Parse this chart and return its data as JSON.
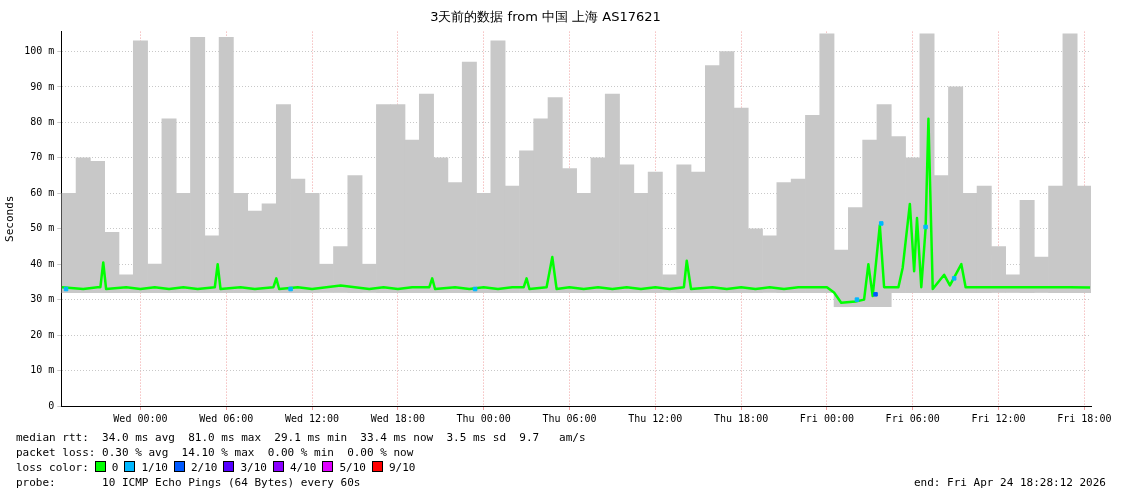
{
  "chart_data": {
    "type": "line",
    "title": "3天前的数据 from 中国 上海 AS17621",
    "ylabel": "Seconds",
    "xlim": [
      "2026-04-21T18:28",
      "2026-04-24T18:28"
    ],
    "xticks": [
      {
        "value": "2026-04-22T00:00",
        "label": "Wed 00:00"
      },
      {
        "value": "2026-04-22T06:00",
        "label": "Wed 06:00"
      },
      {
        "value": "2026-04-22T12:00",
        "label": "Wed 12:00"
      },
      {
        "value": "2026-04-22T18:00",
        "label": "Wed 18:00"
      },
      {
        "value": "2026-04-23T00:00",
        "label": "Thu 00:00"
      },
      {
        "value": "2026-04-23T06:00",
        "label": "Thu 06:00"
      },
      {
        "value": "2026-04-23T12:00",
        "label": "Thu 12:00"
      },
      {
        "value": "2026-04-23T18:00",
        "label": "Thu 18:00"
      },
      {
        "value": "2026-04-24T00:00",
        "label": "Fri 00:00"
      },
      {
        "value": "2026-04-24T06:00",
        "label": "Fri 06:00"
      },
      {
        "value": "2026-04-24T12:00",
        "label": "Fri 12:00"
      },
      {
        "value": "2026-04-24T18:00",
        "label": "Fri 18:00"
      }
    ],
    "ylim": [
      0,
      105.6
    ],
    "yticks": [
      0,
      {
        "value": 10,
        "label": "10 m"
      },
      {
        "value": 20,
        "label": "20 m"
      },
      {
        "value": 30,
        "label": "30 m"
      },
      {
        "value": 40,
        "label": "40 m"
      },
      {
        "value": 50,
        "label": "50 m"
      },
      {
        "value": 60,
        "label": "60 m"
      },
      {
        "value": 70,
        "label": "70 m"
      },
      {
        "value": 80,
        "label": "80 m"
      },
      {
        "value": 90,
        "label": "90 m"
      },
      {
        "value": 100,
        "label": "100 m"
      }
    ],
    "grid": true,
    "legend": "bottom",
    "legend_title": "loss color:",
    "series": [
      {
        "type": "bar",
        "color": "#c8c8c8",
        "x": [
          "2026-04-21T19:00",
          "2026-04-21T20:00",
          "2026-04-21T21:00",
          "2026-04-21T22:00",
          "2026-04-21T23:00",
          "2026-04-22T00:00",
          "2026-04-22T01:00",
          "2026-04-22T02:00",
          "2026-04-22T03:00",
          "2026-04-22T04:00",
          "2026-04-22T05:00",
          "2026-04-22T06:00",
          "2026-04-22T07:00",
          "2026-04-22T08:00",
          "2026-04-22T09:00",
          "2026-04-22T10:00",
          "2026-04-22T11:00",
          "2026-04-22T12:00",
          "2026-04-22T13:00",
          "2026-04-22T14:00",
          "2026-04-22T15:00",
          "2026-04-22T16:00",
          "2026-04-22T17:00",
          "2026-04-22T18:00",
          "2026-04-22T19:00",
          "2026-04-22T20:00",
          "2026-04-22T21:00",
          "2026-04-22T22:00",
          "2026-04-22T23:00",
          "2026-04-23T00:00",
          "2026-04-23T01:00",
          "2026-04-23T02:00",
          "2026-04-23T03:00",
          "2026-04-23T04:00",
          "2026-04-23T05:00",
          "2026-04-23T06:00",
          "2026-04-23T07:00",
          "2026-04-23T08:00",
          "2026-04-23T09:00",
          "2026-04-23T10:00",
          "2026-04-23T11:00",
          "2026-04-23T12:00",
          "2026-04-23T13:00",
          "2026-04-23T14:00",
          "2026-04-23T15:00",
          "2026-04-23T16:00",
          "2026-04-23T17:00",
          "2026-04-23T18:00",
          "2026-04-23T19:00",
          "2026-04-23T20:00",
          "2026-04-23T21:00",
          "2026-04-23T22:00",
          "2026-04-23T23:00",
          "2026-04-24T00:00",
          "2026-04-24T01:00",
          "2026-04-24T02:00",
          "2026-04-24T03:00",
          "2026-04-24T04:00",
          "2026-04-24T05:00",
          "2026-04-24T06:00",
          "2026-04-24T07:00",
          "2026-04-24T08:00",
          "2026-04-24T09:00",
          "2026-04-24T10:00",
          "2026-04-24T11:00",
          "2026-04-24T12:00",
          "2026-04-24T13:00",
          "2026-04-24T14:00",
          "2026-04-24T15:00",
          "2026-04-24T16:00",
          "2026-04-24T17:00",
          "2026-04-24T18:00"
        ],
        "base": [
          32,
          32,
          32,
          32,
          32,
          32,
          32,
          32,
          32,
          32,
          32,
          32,
          32,
          32,
          32,
          32,
          32,
          32,
          32,
          32,
          32,
          32,
          32,
          32,
          32,
          32,
          32,
          32,
          32,
          32,
          32,
          32,
          32,
          32,
          32,
          32,
          32,
          32,
          32,
          32,
          32,
          32,
          32,
          32,
          32,
          32,
          32,
          32,
          32,
          32,
          32,
          32,
          32,
          32,
          28,
          28,
          28,
          28,
          32,
          32,
          32,
          32,
          32,
          32,
          32,
          32,
          32,
          32,
          32,
          32,
          32,
          32
        ],
        "values": [
          28,
          38,
          37,
          17,
          5,
          71,
          8,
          49,
          28,
          72,
          16,
          72,
          28,
          23,
          25,
          53,
          32,
          28,
          8,
          13,
          33,
          8,
          53,
          53,
          43,
          56,
          38,
          31,
          65,
          28,
          71,
          30,
          40,
          49,
          55,
          35,
          28,
          38,
          56,
          36,
          28,
          34,
          5,
          36,
          34,
          64,
          68,
          52,
          18,
          16,
          31,
          32,
          50,
          73,
          16,
          28,
          47,
          57,
          44,
          38,
          73,
          33,
          58,
          28,
          30,
          13,
          5,
          26,
          10,
          30,
          73,
          30
        ]
      },
      {
        "name": "0",
        "color": "#00ff00",
        "marker": "none",
        "line_style": "solid",
        "x": [
          "2026-04-21T18:30",
          "2026-04-21T20:00",
          "2026-04-21T21:00",
          "2026-04-21T21:12",
          "2026-04-21T21:24",
          "2026-04-21T21:36",
          "2026-04-21T23:00",
          "2026-04-22T00:00",
          "2026-04-22T01:00",
          "2026-04-22T02:00",
          "2026-04-22T03:00",
          "2026-04-22T04:00",
          "2026-04-22T05:12",
          "2026-04-22T05:24",
          "2026-04-22T05:36",
          "2026-04-22T07:00",
          "2026-04-22T08:00",
          "2026-04-22T09:18",
          "2026-04-22T09:30",
          "2026-04-22T09:42",
          "2026-04-22T11:00",
          "2026-04-22T12:00",
          "2026-04-22T13:00",
          "2026-04-22T14:00",
          "2026-04-22T15:00",
          "2026-04-22T16:00",
          "2026-04-22T17:00",
          "2026-04-22T18:00",
          "2026-04-22T19:00",
          "2026-04-22T20:12",
          "2026-04-22T20:24",
          "2026-04-22T20:36",
          "2026-04-22T22:00",
          "2026-04-22T23:00",
          "2026-04-23T00:00",
          "2026-04-23T01:00",
          "2026-04-23T02:00",
          "2026-04-23T02:48",
          "2026-04-23T03:00",
          "2026-04-23T03:12",
          "2026-04-23T04:24",
          "2026-04-23T04:48",
          "2026-04-23T05:06",
          "2026-04-23T06:00",
          "2026-04-23T07:00",
          "2026-04-23T08:00",
          "2026-04-23T09:00",
          "2026-04-23T10:00",
          "2026-04-23T11:00",
          "2026-04-23T12:00",
          "2026-04-23T13:00",
          "2026-04-23T14:00",
          "2026-04-23T14:12",
          "2026-04-23T14:30",
          "2026-04-23T16:00",
          "2026-04-23T17:00",
          "2026-04-23T18:00",
          "2026-04-23T19:00",
          "2026-04-23T20:00",
          "2026-04-23T21:00",
          "2026-04-23T22:00",
          "2026-04-23T23:00",
          "2026-04-24T00:00",
          "2026-04-24T00:30",
          "2026-04-24T01:00",
          "2026-04-24T02:00",
          "2026-04-24T02:36",
          "2026-04-24T02:54",
          "2026-04-24T03:12",
          "2026-04-24T03:42",
          "2026-04-24T04:00",
          "2026-04-24T05:00",
          "2026-04-24T05:18",
          "2026-04-24T05:48",
          "2026-04-24T06:06",
          "2026-04-24T06:18",
          "2026-04-24T06:36",
          "2026-04-24T06:54",
          "2026-04-24T07:06",
          "2026-04-24T07:24",
          "2026-04-24T08:12",
          "2026-04-24T08:36",
          "2026-04-24T09:24",
          "2026-04-24T09:42",
          "2026-04-24T10:00",
          "2026-04-24T11:00",
          "2026-04-24T12:00",
          "2026-04-24T13:00",
          "2026-04-24T14:00",
          "2026-04-24T15:00",
          "2026-04-24T16:00",
          "2026-04-24T17:00",
          "2026-04-24T18:24"
        ],
        "values": [
          33.5,
          33,
          33.5,
          33.5,
          40.5,
          33,
          33.5,
          33,
          33.5,
          33,
          33.5,
          33,
          33.5,
          40,
          33,
          33.5,
          33,
          33.5,
          36,
          33,
          33.5,
          33,
          33.5,
          34,
          33.5,
          33,
          33.5,
          33,
          33.5,
          33.5,
          36,
          33,
          33.5,
          33,
          33.5,
          33,
          33.5,
          33.5,
          36,
          33,
          33.5,
          42,
          33,
          33.5,
          33,
          33.5,
          33,
          33.5,
          33,
          33.5,
          33,
          33.5,
          41,
          33,
          33.5,
          33,
          33.5,
          33,
          33.5,
          33,
          33.5,
          33.5,
          33.5,
          32,
          29.1,
          29.5,
          30,
          40,
          31,
          51,
          33.5,
          33.5,
          39,
          57,
          38,
          53,
          33.5,
          50,
          81,
          33,
          37,
          34,
          40,
          33.5,
          33.5,
          33.5,
          33.5,
          33.5,
          33.5,
          33.5,
          33.5,
          33.5,
          33.4
        ]
      },
      {
        "type": "scatter",
        "name": "1/10",
        "color": "#00b8ff",
        "marker": "square",
        "x": [
          "2026-04-21T18:48",
          "2026-04-22T10:30",
          "2026-04-22T23:24",
          "2026-04-24T02:06",
          "2026-04-24T03:48",
          "2026-04-24T06:54",
          "2026-04-24T08:54"
        ],
        "values": [
          33,
          33,
          33,
          30,
          51.5,
          50.5,
          36
        ]
      },
      {
        "type": "scatter",
        "name": "2/10",
        "color": "#0059ff",
        "marker": "square",
        "x": [
          "2026-04-24T03:24"
        ],
        "values": [
          31.5
        ]
      },
      {
        "type": "scatter",
        "name": "3/10",
        "color": "#5500ff",
        "marker": "square"
      },
      {
        "type": "scatter",
        "name": "4/10",
        "color": "#8a00ff",
        "marker": "square"
      },
      {
        "type": "scatter",
        "name": "5/10",
        "color": "#df00ff",
        "marker": "square"
      },
      {
        "type": "scatter",
        "name": "9/10",
        "color": "#ff0000",
        "marker": "square"
      }
    ],
    "annotations": [
      "median rtt:  34.0 ms avg  81.0 ms max  29.1 ms min  33.4 ms now  3.5 ms sd  9.7   am/s",
      "packet loss: 0.30 % avg  14.10 % max  0.00 % min  0.00 % now",
      "probe:       10 ICMP Echo Pings (64 Bytes) every 60s",
      "end: Fri Apr 24 18:28:12 2026"
    ]
  }
}
